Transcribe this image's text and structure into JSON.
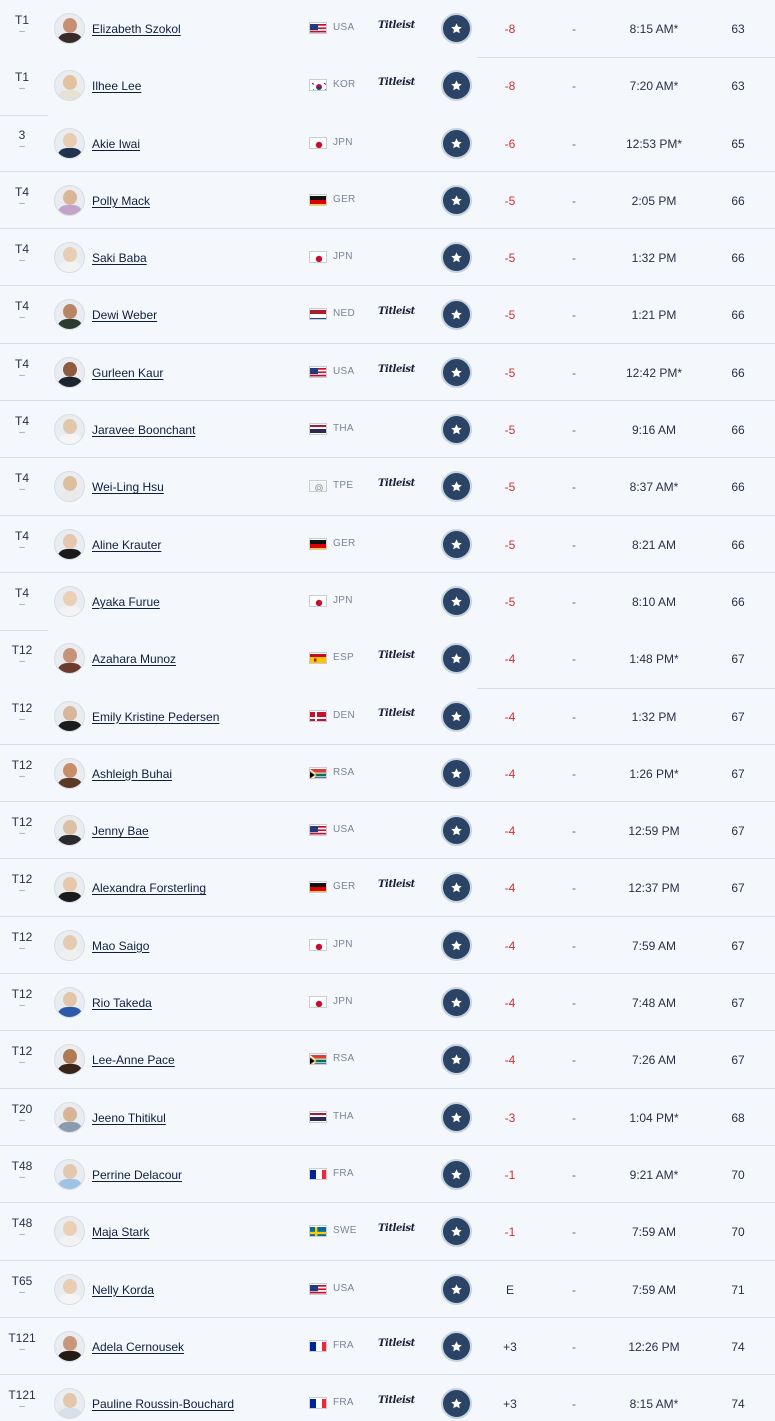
{
  "board": {
    "rows": [
      {
        "pos": "T1",
        "move": "–",
        "name": "Elizabeth Szokol",
        "country": "USA",
        "flag": "usa",
        "brand": "Titleist",
        "score": "-8",
        "thru": "-",
        "tee": "8:15 AM*",
        "total": "63",
        "skin": "#c98f72",
        "shirt": "#3b2a2a",
        "border": "right"
      },
      {
        "pos": "T1",
        "move": "–",
        "name": "Ilhee Lee",
        "country": "KOR",
        "flag": "kor",
        "brand": "Titleist",
        "score": "-8",
        "thru": "-",
        "tee": "7:20 AM*",
        "total": "63",
        "skin": "#e2c39f",
        "shirt": "#e6e1d4",
        "border": "left"
      },
      {
        "pos": "3",
        "move": "–",
        "name": "Akie Iwai",
        "country": "JPN",
        "flag": "jpn",
        "brand": "",
        "score": "-6",
        "thru": "-",
        "tee": "12:53 PM*",
        "total": "65",
        "skin": "#e8cdb3",
        "shirt": "#20324d",
        "border": "full"
      },
      {
        "pos": "T4",
        "move": "–",
        "name": "Polly Mack",
        "country": "GER",
        "flag": "ger",
        "brand": "",
        "score": "-5",
        "thru": "-",
        "tee": "2:05 PM",
        "total": "66",
        "skin": "#d9b59a",
        "shirt": "#c4a3c9",
        "border": "full"
      },
      {
        "pos": "T4",
        "move": "–",
        "name": "Saki Baba",
        "country": "JPN",
        "flag": "jpn",
        "brand": "",
        "score": "-5",
        "thru": "-",
        "tee": "1:32 PM",
        "total": "66",
        "skin": "#e7cdb1",
        "shirt": "#f2f2f2",
        "border": "full"
      },
      {
        "pos": "T4",
        "move": "–",
        "name": "Dewi Weber",
        "country": "NED",
        "flag": "ned",
        "brand": "Titleist",
        "score": "-5",
        "thru": "-",
        "tee": "1:21 PM",
        "total": "66",
        "skin": "#b88566",
        "shirt": "#2c3b2e",
        "border": "full"
      },
      {
        "pos": "T4",
        "move": "–",
        "name": "Gurleen Kaur",
        "country": "USA",
        "flag": "usa",
        "brand": "Titleist",
        "score": "-5",
        "thru": "-",
        "tee": "12:42 PM*",
        "total": "66",
        "skin": "#8f5a3f",
        "shirt": "#1e2330",
        "border": "full"
      },
      {
        "pos": "T4",
        "move": "–",
        "name": "Jaravee Boonchant",
        "country": "THA",
        "flag": "tha",
        "brand": "",
        "score": "-5",
        "thru": "-",
        "tee": "9:16 AM",
        "total": "66",
        "skin": "#e3c7aa",
        "shirt": "#f5f5f5",
        "border": "full"
      },
      {
        "pos": "T4",
        "move": "–",
        "name": "Wei-Ling Hsu",
        "country": "TPE",
        "flag": "tpe",
        "brand": "Titleist",
        "score": "-5",
        "thru": "-",
        "tee": "8:37 AM*",
        "total": "66",
        "skin": "#dcbf9f",
        "shirt": "#eaeaea",
        "border": "full"
      },
      {
        "pos": "T4",
        "move": "–",
        "name": "Aline Krauter",
        "country": "GER",
        "flag": "ger",
        "brand": "",
        "score": "-5",
        "thru": "-",
        "tee": "8:21 AM",
        "total": "66",
        "skin": "#e4c7ae",
        "shirt": "#1a1a1a",
        "border": "full"
      },
      {
        "pos": "T4",
        "move": "–",
        "name": "Ayaka Furue",
        "country": "JPN",
        "flag": "jpn",
        "brand": "",
        "score": "-5",
        "thru": "-",
        "tee": "8:10 AM",
        "total": "66",
        "skin": "#e9d0b6",
        "shirt": "#f3f3f3",
        "border": "left"
      },
      {
        "pos": "T12",
        "move": "–",
        "name": "Azahara Munoz",
        "country": "ESP",
        "flag": "esp",
        "brand": "Titleist",
        "score": "-4",
        "thru": "-",
        "tee": "1:48 PM*",
        "total": "67",
        "skin": "#c49378",
        "shirt": "#6b3b2e",
        "border": "right"
      },
      {
        "pos": "T12",
        "move": "–",
        "name": "Emily Kristine Pedersen",
        "country": "DEN",
        "flag": "den",
        "brand": "Titleist",
        "score": "-4",
        "thru": "-",
        "tee": "1:32 PM",
        "total": "67",
        "skin": "#d9b79d",
        "shirt": "#1c1c1c",
        "border": "full"
      },
      {
        "pos": "T12",
        "move": "–",
        "name": "Ashleigh Buhai",
        "country": "RSA",
        "flag": "rsa",
        "brand": "",
        "score": "-4",
        "thru": "-",
        "tee": "1:26 PM*",
        "total": "67",
        "skin": "#c98e68",
        "shirt": "#5a3a24",
        "border": "full"
      },
      {
        "pos": "T12",
        "move": "–",
        "name": "Jenny Bae",
        "country": "USA",
        "flag": "usa",
        "brand": "",
        "score": "-4",
        "thru": "-",
        "tee": "12:59 PM",
        "total": "67",
        "skin": "#dcc0a4",
        "shirt": "#2a2a2a",
        "border": "full"
      },
      {
        "pos": "T12",
        "move": "–",
        "name": "Alexandra Forsterling",
        "country": "GER",
        "flag": "ger",
        "brand": "Titleist",
        "score": "-4",
        "thru": "-",
        "tee": "12:37 PM",
        "total": "67",
        "skin": "#e6c9ad",
        "shirt": "#1b1b1b",
        "border": "full"
      },
      {
        "pos": "T12",
        "move": "–",
        "name": "Mao Saigo",
        "country": "JPN",
        "flag": "jpn",
        "brand": "",
        "score": "-4",
        "thru": "-",
        "tee": "7:59 AM",
        "total": "67",
        "skin": "#e5cbb0",
        "shirt": "#f0f0f0",
        "border": "full"
      },
      {
        "pos": "T12",
        "move": "–",
        "name": "Rio Takeda",
        "country": "JPN",
        "flag": "jpn",
        "brand": "",
        "score": "-4",
        "thru": "-",
        "tee": "7:48 AM",
        "total": "67",
        "skin": "#e2c6a9",
        "shirt": "#2b5aa8",
        "border": "full"
      },
      {
        "pos": "T12",
        "move": "–",
        "name": "Lee-Anne Pace",
        "country": "RSA",
        "flag": "rsa",
        "brand": "",
        "score": "-4",
        "thru": "-",
        "tee": "7:26 AM",
        "total": "67",
        "skin": "#b07a55",
        "shirt": "#3a2418",
        "border": "full"
      },
      {
        "pos": "T20",
        "move": "–",
        "name": "Jeeno Thitikul",
        "country": "THA",
        "flag": "tha",
        "brand": "",
        "score": "-3",
        "thru": "-",
        "tee": "1:04 PM*",
        "total": "68",
        "skin": "#d8b596",
        "shirt": "#8a9bb0",
        "border": "full"
      },
      {
        "pos": "T48",
        "move": "–",
        "name": "Perrine Delacour",
        "country": "FRA",
        "flag": "fra",
        "brand": "",
        "score": "-1",
        "thru": "-",
        "tee": "9:21 AM*",
        "total": "70",
        "skin": "#e4c8ae",
        "shirt": "#9fc2e6",
        "border": "full"
      },
      {
        "pos": "T48",
        "move": "–",
        "name": "Maja Stark",
        "country": "SWE",
        "flag": "swe",
        "brand": "Titleist",
        "score": "-1",
        "thru": "-",
        "tee": "7:59 AM",
        "total": "70",
        "skin": "#ebd0b6",
        "shirt": "#f2f2f2",
        "border": "full"
      },
      {
        "pos": "T65",
        "move": "–",
        "name": "Nelly Korda",
        "country": "USA",
        "flag": "usa",
        "brand": "",
        "score": "E",
        "thru": "-",
        "tee": "7:59 AM",
        "total": "71",
        "skin": "#e8cdb2",
        "shirt": "#f4f4f4",
        "border": "full"
      },
      {
        "pos": "T121",
        "move": "–",
        "name": "Adela Cernousek",
        "country": "FRA",
        "flag": "fra",
        "brand": "Titleist",
        "score": "+3",
        "thru": "-",
        "tee": "12:26 PM",
        "total": "74",
        "skin": "#c8967a",
        "shirt": "#241a16",
        "border": "full"
      },
      {
        "pos": "T121",
        "move": "–",
        "name": "Pauline Roussin-Bouchard",
        "country": "FRA",
        "flag": "fra",
        "brand": "Titleist",
        "score": "+3",
        "thru": "-",
        "tee": "8:15 AM*",
        "total": "74",
        "skin": "#e3c7ab",
        "shirt": "#d9dfe8",
        "border": "none"
      }
    ]
  },
  "colors": {
    "background": "#f4f8fd",
    "score_under_par": "#d0312d",
    "favorite_button": "#2b4466",
    "divider": "#d6dde6"
  },
  "icons": {
    "favorite": "star-icon"
  }
}
